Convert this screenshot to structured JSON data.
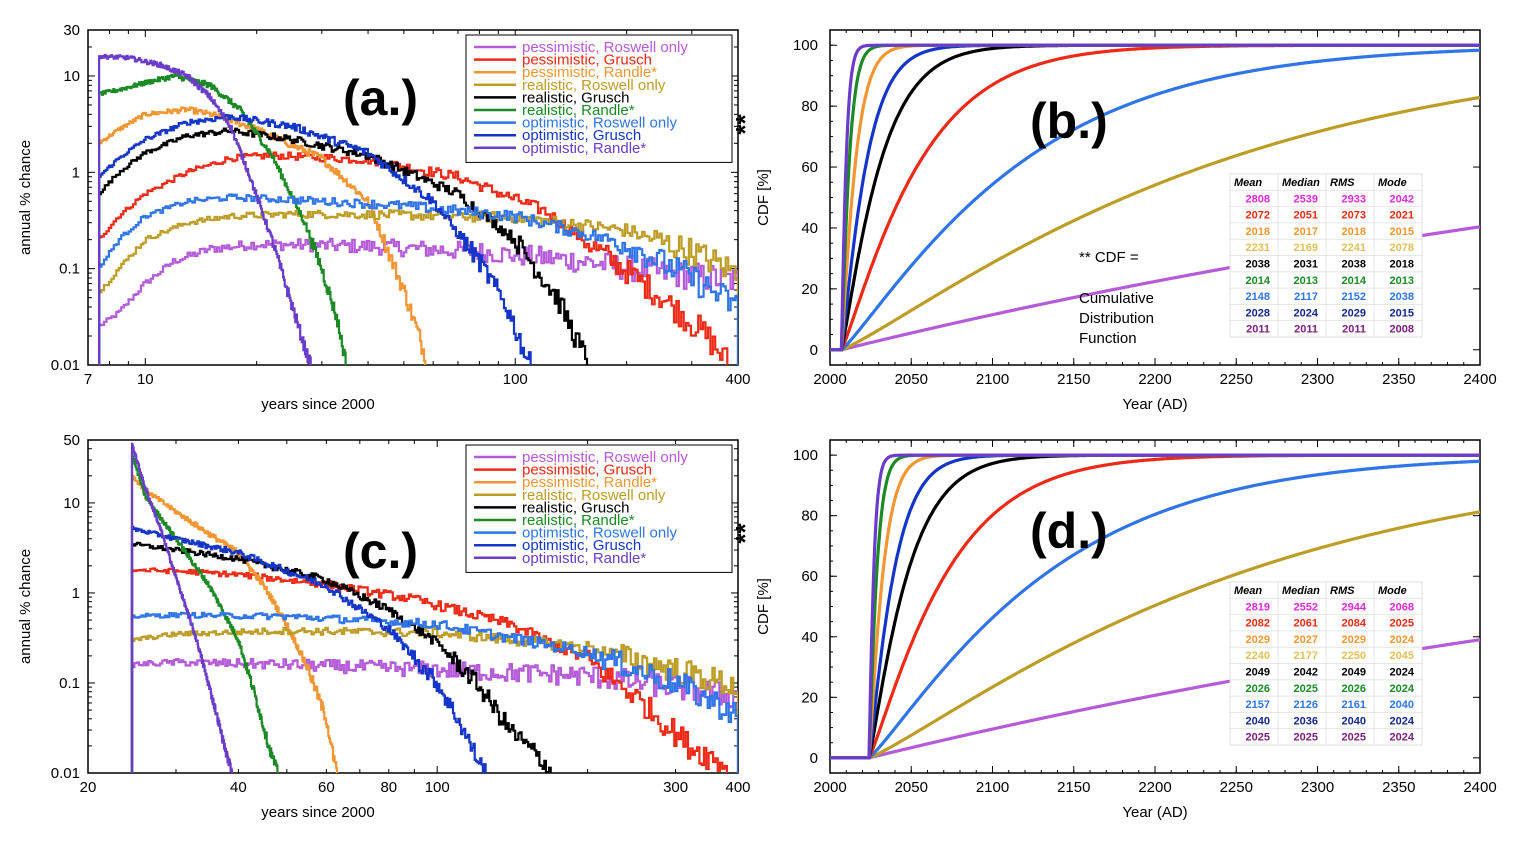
{
  "colors": {
    "pr": "#b55ad8",
    "pg": "#ee2a16",
    "pra": "#f29634",
    "rr": "#bd9d25",
    "rg": "#000000",
    "rra": "#1b8a24",
    "or": "#2f75e8",
    "og": "#1436c8",
    "ora": "#6a3cc9"
  },
  "series_names": [
    "pessimistic, Roswell only",
    "pessimistic, Grusch",
    "pessimistic, Randle*",
    "realistic, Roswell only",
    "realistic, Grusch",
    "realistic, Randle*",
    "optimistic, Roswell only",
    "optimistic, Grusch",
    "optimistic, Randle*"
  ],
  "series_colors": [
    "pr",
    "pg",
    "pra",
    "rr",
    "rg",
    "rra",
    "or",
    "og",
    "ora"
  ],
  "stats_headers": [
    "Mean",
    "Median",
    "RMS",
    "Mode"
  ],
  "cdf_note": "** CDF =",
  "cdf_note_lines": [
    "Cumulative",
    "Distribution",
    "Function"
  ],
  "ylabel_annotation": "**",
  "chart_data": [
    {
      "id": "a",
      "type": "line",
      "label": "(a.)",
      "xscale": "log",
      "yscale": "log",
      "xlim": [
        7,
        400
      ],
      "ylim": [
        0.01,
        30
      ],
      "xticks": [
        7,
        10,
        100,
        400
      ],
      "yticks": [
        0.01,
        0.1,
        1,
        10,
        30
      ],
      "xlabel": "years since 2000",
      "ylabel": "annual % chance",
      "legend": "top-right",
      "series": [
        {
          "name": "pessimistic, Roswell only",
          "color": "pr",
          "x": [
            7.5,
            8.5,
            10,
            12,
            15,
            20,
            40,
            80,
            150,
            250,
            400
          ],
          "y": [
            0.025,
            0.035,
            0.07,
            0.12,
            0.16,
            0.18,
            0.17,
            0.15,
            0.12,
            0.09,
            0.075
          ]
        },
        {
          "name": "pessimistic, Grusch",
          "color": "pg",
          "x": [
            7.5,
            8.5,
            10,
            13,
            17,
            22,
            40,
            70,
            120,
            170,
            250,
            330,
            380
          ],
          "y": [
            0.2,
            0.35,
            0.6,
            1.0,
            1.4,
            1.5,
            1.35,
            0.9,
            0.4,
            0.15,
            0.05,
            0.02,
            0.01
          ]
        },
        {
          "name": "pessimistic, Randle*",
          "color": "pra",
          "x": [
            7.5,
            8.5,
            10,
            13,
            16,
            20,
            30,
            40,
            50,
            55,
            58
          ],
          "y": [
            2.0,
            2.8,
            4.0,
            4.5,
            3.8,
            2.8,
            1.4,
            0.5,
            0.06,
            0.02,
            0.01
          ]
        },
        {
          "name": "realistic, Roswell only",
          "color": "rr",
          "x": [
            7.5,
            8.5,
            10,
            13,
            17,
            25,
            50,
            100,
            200,
            300,
            400
          ],
          "y": [
            0.055,
            0.1,
            0.2,
            0.3,
            0.35,
            0.37,
            0.36,
            0.34,
            0.25,
            0.15,
            0.09
          ]
        },
        {
          "name": "realistic, Grusch",
          "color": "rg",
          "x": [
            7.5,
            8.5,
            10,
            13,
            17,
            25,
            40,
            70,
            100,
            130,
            150,
            160
          ],
          "y": [
            0.6,
            1.0,
            1.6,
            2.4,
            2.7,
            2.2,
            1.5,
            0.6,
            0.2,
            0.05,
            0.015,
            0.01
          ]
        },
        {
          "name": "realistic, Randle*",
          "color": "rra",
          "x": [
            7.5,
            8.5,
            10,
            12,
            15,
            18,
            22,
            27,
            30,
            33,
            35
          ],
          "y": [
            6.5,
            7.2,
            8.5,
            10.0,
            8.0,
            4.5,
            1.5,
            0.3,
            0.1,
            0.03,
            0.01
          ]
        },
        {
          "name": "optimistic, Roswell only",
          "color": "or",
          "x": [
            7.5,
            8.5,
            10,
            13,
            17,
            25,
            50,
            100,
            200,
            300,
            400
          ],
          "y": [
            0.1,
            0.2,
            0.35,
            0.5,
            0.55,
            0.52,
            0.45,
            0.35,
            0.18,
            0.08,
            0.04
          ]
        },
        {
          "name": "optimistic, Grusch",
          "color": "og",
          "x": [
            7.5,
            8.5,
            10,
            13,
            17,
            25,
            40,
            60,
            80,
            95,
            105,
            110
          ],
          "y": [
            0.9,
            1.4,
            2.2,
            3.3,
            3.8,
            3.0,
            1.6,
            0.5,
            0.12,
            0.04,
            0.015,
            0.01
          ]
        },
        {
          "name": "optimistic, Randle*",
          "color": "ora",
          "x": [
            7.5,
            9,
            11,
            13,
            15,
            17,
            19,
            22,
            25,
            27,
            28
          ],
          "y": [
            16.0,
            15.5,
            13.0,
            10.0,
            6.0,
            3.0,
            1.0,
            0.2,
            0.04,
            0.015,
            0.01
          ]
        }
      ]
    },
    {
      "id": "b",
      "type": "line",
      "label": "(b.)",
      "xlim": [
        2000,
        2400
      ],
      "ylim": [
        -5,
        105
      ],
      "xticks": [
        2000,
        2050,
        2100,
        2150,
        2200,
        2250,
        2300,
        2350,
        2400
      ],
      "yticks": [
        0,
        20,
        40,
        60,
        80,
        100
      ],
      "xlabel": "Year (AD)",
      "ylabel": "CDF [%]",
      "stats_table": [
        {
          "color": "#e02ad8",
          "values": [
            "2808",
            "2539",
            "2933",
            "2042"
          ]
        },
        {
          "color": "pg",
          "values": [
            "2072",
            "2051",
            "2073",
            "2021"
          ]
        },
        {
          "color": "pra",
          "values": [
            "2018",
            "2017",
            "2018",
            "2015"
          ]
        },
        {
          "color": "#e0c05a",
          "values": [
            "2231",
            "2169",
            "2241",
            "2078"
          ]
        },
        {
          "color": "rg",
          "values": [
            "2038",
            "2031",
            "2038",
            "2018"
          ]
        },
        {
          "color": "rra",
          "values": [
            "2014",
            "2013",
            "2014",
            "2013"
          ]
        },
        {
          "color": "or",
          "values": [
            "2148",
            "2117",
            "2152",
            "2038"
          ]
        },
        {
          "color": "#132a8a",
          "values": [
            "2028",
            "2024",
            "2029",
            "2015"
          ]
        },
        {
          "color": "#7a1e7a",
          "values": [
            "2011",
            "2011",
            "2011",
            "2008"
          ]
        }
      ],
      "series": [
        {
          "name": "pessimistic, Roswell only",
          "color": "pr",
          "start": 2007,
          "tau": 760,
          "kind": "exp"
        },
        {
          "name": "pessimistic, Grusch",
          "color": "pg",
          "start": 2007,
          "tau": 50,
          "kind": "sig"
        },
        {
          "name": "pessimistic, Randle*",
          "color": "pra",
          "start": 2007,
          "tau": 9,
          "kind": "sig"
        },
        {
          "name": "realistic, Roswell only",
          "color": "rr",
          "start": 2007,
          "tau": 240,
          "kind": "sig"
        },
        {
          "name": "realistic, Grusch",
          "color": "rg",
          "start": 2007,
          "tau": 25,
          "kind": "sig"
        },
        {
          "name": "realistic, Randle*",
          "color": "rra",
          "start": 2007,
          "tau": 5,
          "kind": "sig"
        },
        {
          "name": "optimistic, Roswell only",
          "color": "or",
          "start": 2007,
          "tau": 115,
          "kind": "sig"
        },
        {
          "name": "optimistic, Grusch",
          "color": "og",
          "start": 2007,
          "tau": 16,
          "kind": "sig"
        },
        {
          "name": "optimistic, Randle*",
          "color": "ora",
          "start": 2007,
          "tau": 3,
          "kind": "sig"
        }
      ]
    },
    {
      "id": "c",
      "type": "line",
      "label": "(c.)",
      "xscale": "log",
      "yscale": "log",
      "xlim": [
        20,
        400
      ],
      "ylim": [
        0.01,
        50
      ],
      "xticks": [
        20,
        40,
        60,
        80,
        100,
        300,
        400
      ],
      "yticks": [
        0.01,
        0.1,
        1,
        10,
        50
      ],
      "xlabel": "years since 2000",
      "ylabel": "annual % chance",
      "legend": "top-right",
      "series": [
        {
          "name": "pessimistic, Roswell only",
          "color": "pr",
          "x": [
            24.5,
            30,
            50,
            100,
            200,
            300,
            400
          ],
          "y": [
            0.16,
            0.17,
            0.16,
            0.14,
            0.12,
            0.09,
            0.07
          ]
        },
        {
          "name": "pessimistic, Grusch",
          "color": "pg",
          "x": [
            24.5,
            30,
            40,
            60,
            90,
            140,
            200,
            250,
            320,
            380
          ],
          "y": [
            1.8,
            1.75,
            1.6,
            1.25,
            0.85,
            0.45,
            0.18,
            0.07,
            0.02,
            0.012
          ]
        },
        {
          "name": "pessimistic, Randle*",
          "color": "pra",
          "x": [
            24.5,
            26,
            30,
            35,
            40,
            45,
            50,
            55,
            60,
            62,
            63
          ],
          "y": [
            20,
            14,
            8,
            4.5,
            2.8,
            1.2,
            0.45,
            0.15,
            0.04,
            0.015,
            0.01
          ]
        },
        {
          "name": "realistic, Roswell only",
          "color": "rr",
          "x": [
            24.5,
            30,
            50,
            100,
            200,
            300,
            400
          ],
          "y": [
            0.3,
            0.35,
            0.38,
            0.36,
            0.25,
            0.14,
            0.09
          ]
        },
        {
          "name": "realistic, Grusch",
          "color": "rg",
          "x": [
            24.5,
            30,
            40,
            60,
            80,
            100,
            120,
            140,
            160,
            170
          ],
          "y": [
            3.5,
            3.0,
            2.4,
            1.4,
            0.65,
            0.28,
            0.1,
            0.03,
            0.015,
            0.01
          ]
        },
        {
          "name": "realistic, Randle*",
          "color": "rra",
          "x": [
            24.5,
            26,
            30,
            35,
            40,
            43,
            46,
            48
          ],
          "y": [
            35,
            12,
            4.0,
            1.2,
            0.3,
            0.08,
            0.02,
            0.01
          ]
        },
        {
          "name": "optimistic, Roswell only",
          "color": "or",
          "x": [
            24.5,
            30,
            50,
            100,
            200,
            300,
            400
          ],
          "y": [
            0.55,
            0.57,
            0.55,
            0.45,
            0.22,
            0.1,
            0.045
          ]
        },
        {
          "name": "optimistic, Grusch",
          "color": "og",
          "x": [
            24.5,
            30,
            40,
            60,
            80,
            100,
            110,
            120,
            125
          ],
          "y": [
            5.2,
            4.0,
            2.8,
            1.2,
            0.4,
            0.1,
            0.04,
            0.015,
            0.01
          ]
        },
        {
          "name": "optimistic, Randle*",
          "color": "ora",
          "x": [
            24.5,
            26,
            28,
            30,
            33,
            36,
            38,
            39
          ],
          "y": [
            45,
            15,
            5.0,
            1.5,
            0.3,
            0.05,
            0.015,
            0.01
          ]
        }
      ]
    },
    {
      "id": "d",
      "type": "line",
      "label": "(d.)",
      "xlim": [
        2000,
        2400
      ],
      "ylim": [
        -5,
        105
      ],
      "xticks": [
        2000,
        2050,
        2100,
        2150,
        2200,
        2250,
        2300,
        2350,
        2400
      ],
      "yticks": [
        0,
        20,
        40,
        60,
        80,
        100
      ],
      "xlabel": "Year (AD)",
      "ylabel": "CDF [%]",
      "stats_table": [
        {
          "color": "#e02ad8",
          "values": [
            "2819",
            "2552",
            "2944",
            "2068"
          ]
        },
        {
          "color": "pg",
          "values": [
            "2082",
            "2061",
            "2084",
            "2025"
          ]
        },
        {
          "color": "pra",
          "values": [
            "2029",
            "2027",
            "2029",
            "2024"
          ]
        },
        {
          "color": "#e0c05a",
          "values": [
            "2240",
            "2177",
            "2250",
            "2045"
          ]
        },
        {
          "color": "rg",
          "values": [
            "2049",
            "2042",
            "2049",
            "2024"
          ]
        },
        {
          "color": "rra",
          "values": [
            "2026",
            "2025",
            "2026",
            "2024"
          ]
        },
        {
          "color": "or",
          "values": [
            "2157",
            "2126",
            "2161",
            "2040"
          ]
        },
        {
          "color": "#132a8a",
          "values": [
            "2040",
            "2036",
            "2040",
            "2024"
          ]
        },
        {
          "color": "#7a1e7a",
          "values": [
            "2025",
            "2025",
            "2025",
            "2024"
          ]
        }
      ],
      "series": [
        {
          "name": "pessimistic, Roswell only",
          "color": "pr",
          "start": 2024,
          "tau": 760,
          "kind": "exp"
        },
        {
          "name": "pessimistic, Grusch",
          "color": "pg",
          "start": 2024,
          "tau": 50,
          "kind": "sig"
        },
        {
          "name": "pessimistic, Randle*",
          "color": "pra",
          "start": 2024,
          "tau": 9,
          "kind": "sig"
        },
        {
          "name": "realistic, Roswell only",
          "color": "rr",
          "start": 2024,
          "tau": 240,
          "kind": "sig"
        },
        {
          "name": "realistic, Grusch",
          "color": "rg",
          "start": 2024,
          "tau": 25,
          "kind": "sig"
        },
        {
          "name": "realistic, Randle*",
          "color": "rra",
          "start": 2024,
          "tau": 5,
          "kind": "sig"
        },
        {
          "name": "optimistic, Roswell only",
          "color": "or",
          "start": 2024,
          "tau": 115,
          "kind": "sig"
        },
        {
          "name": "optimistic, Grusch",
          "color": "og",
          "start": 2024,
          "tau": 16,
          "kind": "sig"
        },
        {
          "name": "optimistic, Randle*",
          "color": "ora",
          "start": 2024,
          "tau": 3,
          "kind": "sig"
        }
      ]
    }
  ]
}
